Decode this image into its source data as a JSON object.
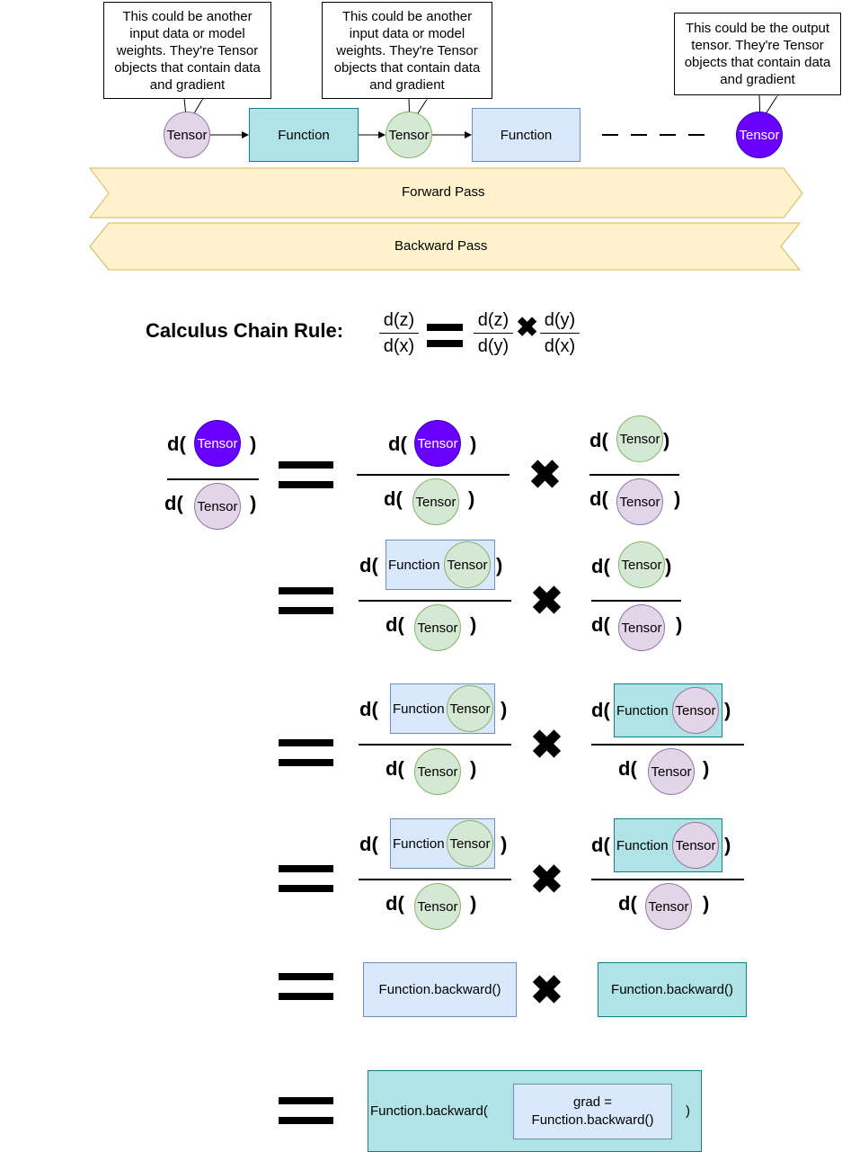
{
  "callouts": {
    "first": "This could be another input data or model weights. They're Tensor objects that contain data and gradient",
    "second": "This could be another input data or model weights. They're Tensor objects that contain data and gradient",
    "output": "This could be the output tensor. They're Tensor objects that contain data and gradient"
  },
  "labels": {
    "tensor": "Tensor",
    "function": "Function",
    "forward_pass": "Forward Pass",
    "backward_pass": "Backward Pass",
    "d_open": "d(",
    "close_paren": ")",
    "function_backward": "Function.backward()",
    "function_backward_open": "Function.backward(",
    "grad_line1": "grad =",
    "grad_line2": "Function.backward()"
  },
  "chain_rule": {
    "title": "Calculus Chain Rule:",
    "lhs_num": "d(z)",
    "lhs_den": "d(x)",
    "r1_num": "d(z)",
    "r1_den": "d(y)",
    "r2_num": "d(y)",
    "r2_den": "d(x)"
  },
  "colors": {
    "purple_fill": "#e1d5e7",
    "green_fill": "#d5e8d4",
    "violet_fill": "#6a00ff",
    "teal_fill": "#b0e3e6",
    "blue_fill": "#dae8fc",
    "arrow_fill": "#fff2cc"
  }
}
